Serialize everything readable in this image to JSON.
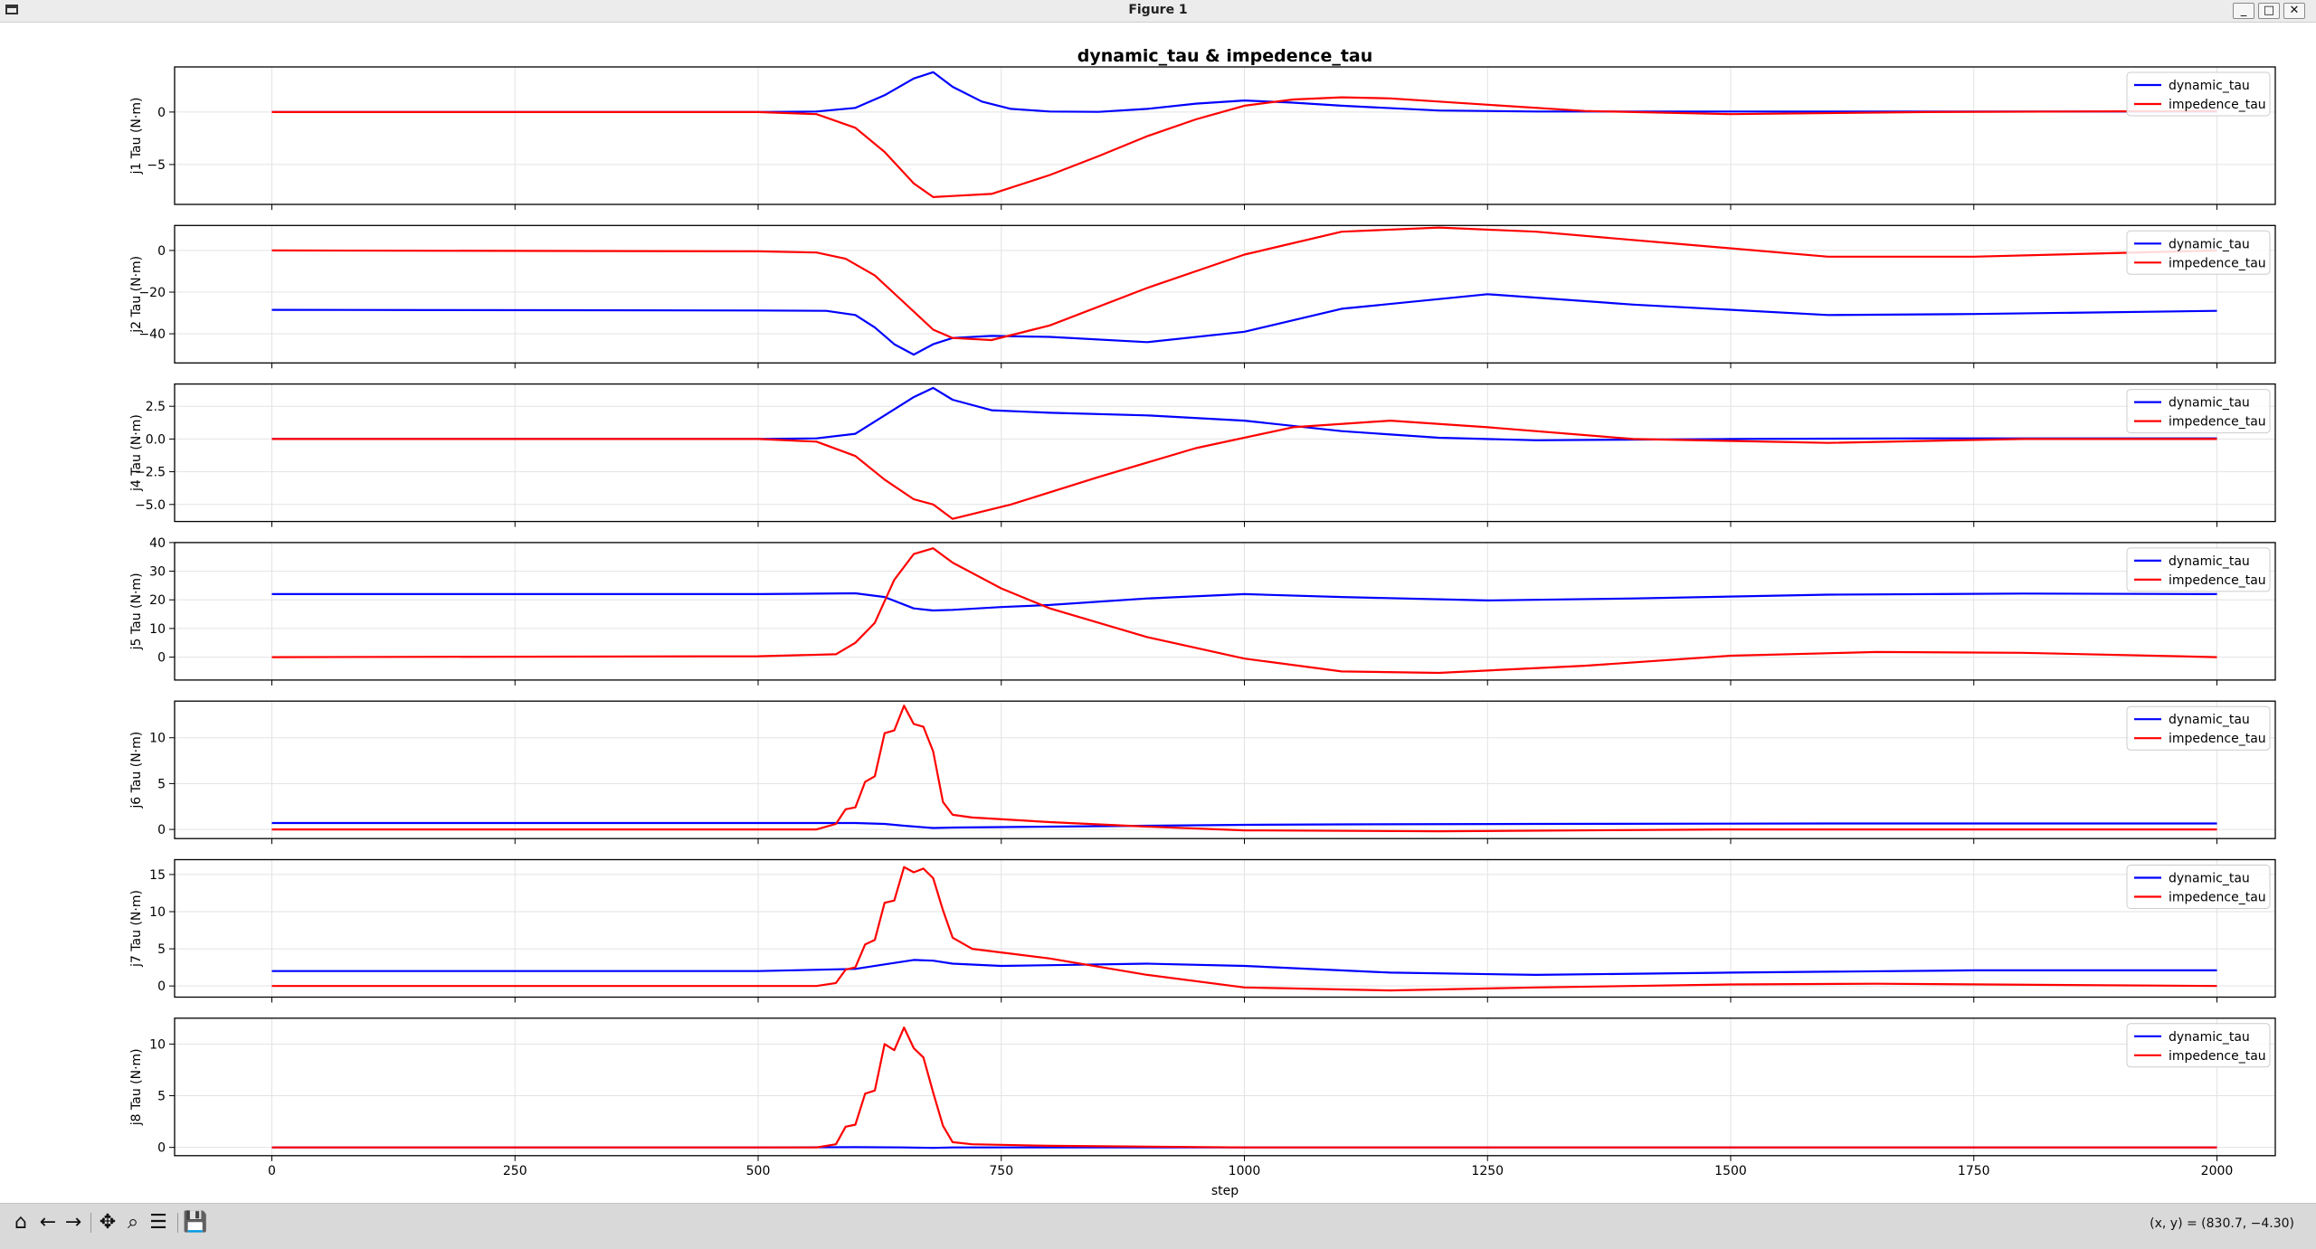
{
  "window": {
    "title": "Figure 1",
    "minimize_glyph": "_",
    "maximize_glyph": "□",
    "close_glyph": "✕"
  },
  "toolbar": {
    "buttons": [
      {
        "icon": "home-icon",
        "glyph": "⌂"
      },
      {
        "icon": "back-icon",
        "glyph": "←"
      },
      {
        "icon": "forward-icon",
        "glyph": "→"
      },
      {
        "icon": "pan-icon",
        "glyph": "✥"
      },
      {
        "icon": "zoom-icon",
        "glyph": "⌕"
      },
      {
        "icon": "configure-subplots-icon",
        "glyph": "☰"
      },
      {
        "icon": "save-icon",
        "glyph": "💾"
      }
    ],
    "coords_text": "(x, y) = (830.7, −4.30)"
  },
  "chart_data": {
    "type": "line",
    "title": "dynamic_tau & impedence_tau",
    "xlabel": "step",
    "xlim": [
      -100,
      2060
    ],
    "xticks": [
      0,
      250,
      500,
      750,
      1000,
      1250,
      1500,
      1750,
      2000
    ],
    "legend": {
      "placement": "upper right",
      "entries": [
        "dynamic_tau",
        "impedence_tau"
      ]
    },
    "grid": true,
    "colors": {
      "dynamic_tau": "#0000ff",
      "impedence_tau": "#ff0000"
    },
    "subplots": [
      {
        "ylabel": "j1 Tau (N·m)",
        "ylim": [
          -8.8,
          4.3
        ],
        "yticks": [
          0,
          -5
        ],
        "ytick_labels": [
          "0",
          "−5"
        ],
        "series": [
          {
            "name": "dynamic_tau",
            "x": [
              0,
              500,
              560,
              600,
              630,
              660,
              680,
              700,
              730,
              760,
              800,
              850,
              900,
              950,
              1000,
              1050,
              1100,
              1200,
              1300,
              1500,
              1700,
              2000
            ],
            "y": [
              0,
              0,
              0.05,
              0.4,
              1.6,
              3.2,
              3.8,
              2.4,
              1.0,
              0.3,
              0.05,
              0.02,
              0.3,
              0.8,
              1.1,
              0.9,
              0.6,
              0.15,
              0.05,
              0.05,
              0.05,
              0.05
            ]
          },
          {
            "name": "impedence_tau",
            "x": [
              0,
              500,
              560,
              600,
              630,
              660,
              680,
              700,
              740,
              800,
              850,
              900,
              950,
              1000,
              1050,
              1100,
              1150,
              1250,
              1350,
              1500,
              1700,
              2000
            ],
            "y": [
              0,
              0,
              -0.2,
              -1.5,
              -3.8,
              -6.8,
              -8.1,
              -8.0,
              -7.8,
              -6.0,
              -4.2,
              -2.3,
              -0.7,
              0.6,
              1.2,
              1.4,
              1.3,
              0.7,
              0.1,
              -0.2,
              0,
              0.1
            ]
          }
        ]
      },
      {
        "ylabel": "j2 Tau (N·m)",
        "ylim": [
          -54,
          12
        ],
        "yticks": [
          0,
          -20,
          -40
        ],
        "ytick_labels": [
          "0",
          "−20",
          "−40"
        ],
        "series": [
          {
            "name": "dynamic_tau",
            "x": [
              0,
              500,
              570,
              600,
              620,
              640,
              660,
              680,
              700,
              740,
              800,
              900,
              1000,
              1100,
              1250,
              1400,
              1600,
              1750,
              2000
            ],
            "y": [
              -28.5,
              -28.8,
              -29,
              -31,
              -37,
              -45,
              -50,
              -45,
              -42,
              -41,
              -41.5,
              -44,
              -39,
              -28,
              -21,
              -26,
              -31,
              -30.5,
              -29
            ]
          },
          {
            "name": "impedence_tau",
            "x": [
              0,
              500,
              560,
              590,
              620,
              650,
              680,
              700,
              740,
              800,
              900,
              1000,
              1100,
              1200,
              1300,
              1450,
              1600,
              1750,
              2000
            ],
            "y": [
              0,
              -0.4,
              -1,
              -4,
              -12,
              -25,
              -38,
              -42,
              -43,
              -36,
              -18,
              -2,
              9,
              11,
              9,
              3,
              -3,
              -3,
              0
            ]
          }
        ]
      },
      {
        "ylabel": "j4 Tau (N·m)",
        "ylim": [
          -6.3,
          4.2
        ],
        "yticks": [
          2.5,
          0.0,
          -2.5,
          -5.0
        ],
        "ytick_labels": [
          "2.5",
          "0.0",
          "−2.5",
          "−5.0"
        ],
        "series": [
          {
            "name": "dynamic_tau",
            "x": [
              0,
              500,
              560,
              600,
              630,
              660,
              680,
              700,
              740,
              800,
              900,
              1000,
              1100,
              1200,
              1300,
              1500,
              1700,
              2000
            ],
            "y": [
              0,
              0,
              0.05,
              0.4,
              1.8,
              3.2,
              3.9,
              3.0,
              2.2,
              2.0,
              1.8,
              1.4,
              0.6,
              0.1,
              -0.1,
              0,
              0.05,
              0.05
            ]
          },
          {
            "name": "impedence_tau",
            "x": [
              0,
              500,
              560,
              600,
              630,
              660,
              680,
              700,
              760,
              850,
              950,
              1050,
              1150,
              1250,
              1400,
              1600,
              1800,
              2000
            ],
            "y": [
              0,
              0,
              -0.2,
              -1.3,
              -3.1,
              -4.6,
              -5.0,
              -6.1,
              -5.0,
              -2.9,
              -0.7,
              0.9,
              1.4,
              0.9,
              0,
              -0.3,
              0,
              0
            ]
          }
        ]
      },
      {
        "ylabel": "j5 Tau (N·m)",
        "ylim": [
          -8,
          40
        ],
        "yticks": [
          40,
          30,
          20,
          10,
          0
        ],
        "ytick_labels": [
          "40",
          "30",
          "20",
          "10",
          "0"
        ],
        "series": [
          {
            "name": "dynamic_tau",
            "x": [
              0,
              500,
              600,
              630,
              660,
              680,
              700,
              750,
              800,
              900,
              1000,
              1100,
              1250,
              1400,
              1600,
              1800,
              2000
            ],
            "y": [
              22,
              22,
              22.3,
              21,
              17,
              16.3,
              16.5,
              17.5,
              18.2,
              20.5,
              22,
              21,
              19.8,
              20.5,
              21.8,
              22.2,
              22
            ]
          },
          {
            "name": "impedence_tau",
            "x": [
              0,
              500,
              580,
              600,
              620,
              640,
              660,
              680,
              700,
              750,
              800,
              900,
              1000,
              1100,
              1200,
              1350,
              1500,
              1650,
              1800,
              2000
            ],
            "y": [
              0,
              0.3,
              1,
              5,
              12,
              27,
              36,
              38,
              33,
              24,
              17,
              7,
              -0.5,
              -5,
              -5.5,
              -3,
              0.5,
              1.8,
              1.5,
              0
            ]
          }
        ]
      },
      {
        "ylabel": "j6 Tau (N·m)",
        "ylim": [
          -1,
          14
        ],
        "yticks": [
          10,
          5,
          0
        ],
        "ytick_labels": [
          "10",
          "5",
          "0"
        ],
        "series": [
          {
            "name": "dynamic_tau",
            "x": [
              0,
              500,
              600,
              630,
              650,
              680,
              700,
              750,
              800,
              900,
              1000,
              1100,
              1300,
              1600,
              2000
            ],
            "y": [
              0.7,
              0.7,
              0.7,
              0.6,
              0.4,
              0.15,
              0.2,
              0.25,
              0.3,
              0.4,
              0.5,
              0.55,
              0.6,
              0.65,
              0.65
            ]
          },
          {
            "name": "impedence_tau",
            "x": [
              0,
              560,
              580,
              590,
              600,
              610,
              620,
              630,
              640,
              650,
              660,
              670,
              680,
              690,
              700,
              720,
              800,
              900,
              1000,
              1200,
              1500,
              2000
            ],
            "y": [
              0,
              0,
              0.6,
              2.2,
              2.4,
              5.2,
              5.8,
              10.5,
              10.8,
              13.5,
              11.5,
              11.2,
              8.5,
              3,
              1.6,
              1.3,
              0.8,
              0.3,
              -0.1,
              -0.2,
              0,
              0
            ]
          }
        ]
      },
      {
        "ylabel": "j7 Tau (N·m)",
        "ylim": [
          -1.5,
          17
        ],
        "yticks": [
          15,
          10,
          5,
          0
        ],
        "ytick_labels": [
          "15",
          "10",
          "5",
          "0"
        ],
        "series": [
          {
            "name": "dynamic_tau",
            "x": [
              0,
              500,
              600,
              630,
              660,
              680,
              700,
              750,
              800,
              900,
              1000,
              1150,
              1300,
              1500,
              1750,
              2000
            ],
            "y": [
              2,
              2,
              2.3,
              2.9,
              3.5,
              3.4,
              3,
              2.7,
              2.8,
              3,
              2.7,
              1.8,
              1.5,
              1.8,
              2.1,
              2.1
            ]
          },
          {
            "name": "impedence_tau",
            "x": [
              0,
              560,
              580,
              590,
              600,
              610,
              620,
              630,
              640,
              650,
              660,
              670,
              680,
              690,
              700,
              720,
              800,
              900,
              1000,
              1150,
              1300,
              1500,
              1650,
              2000
            ],
            "y": [
              0,
              0,
              0.4,
              2.2,
              2.5,
              5.6,
              6.2,
              11.2,
              11.5,
              16,
              15.3,
              15.8,
              14.5,
              10.2,
              6.5,
              5,
              3.7,
              1.5,
              -0.2,
              -0.6,
              -0.2,
              0.2,
              0.3,
              0
            ]
          }
        ]
      },
      {
        "ylabel": "j8 Tau (N·m)",
        "ylim": [
          -0.8,
          12.5
        ],
        "yticks": [
          10,
          5,
          0
        ],
        "ytick_labels": [
          "10",
          "5",
          "0"
        ],
        "series": [
          {
            "name": "dynamic_tau",
            "x": [
              0,
              500,
              600,
              650,
              680,
              700,
              800,
              2000
            ],
            "y": [
              0,
              0,
              0.02,
              0,
              -0.05,
              0,
              0,
              0
            ]
          },
          {
            "name": "impedence_tau",
            "x": [
              0,
              560,
              580,
              590,
              600,
              610,
              620,
              630,
              640,
              650,
              660,
              670,
              680,
              690,
              700,
              720,
              800,
              1000,
              2000
            ],
            "y": [
              0,
              0,
              0.3,
              2,
              2.2,
              5.2,
              5.5,
              10,
              9.4,
              11.6,
              9.6,
              8.7,
              5.3,
              2.1,
              0.5,
              0.3,
              0.15,
              0,
              0
            ]
          }
        ]
      }
    ]
  }
}
